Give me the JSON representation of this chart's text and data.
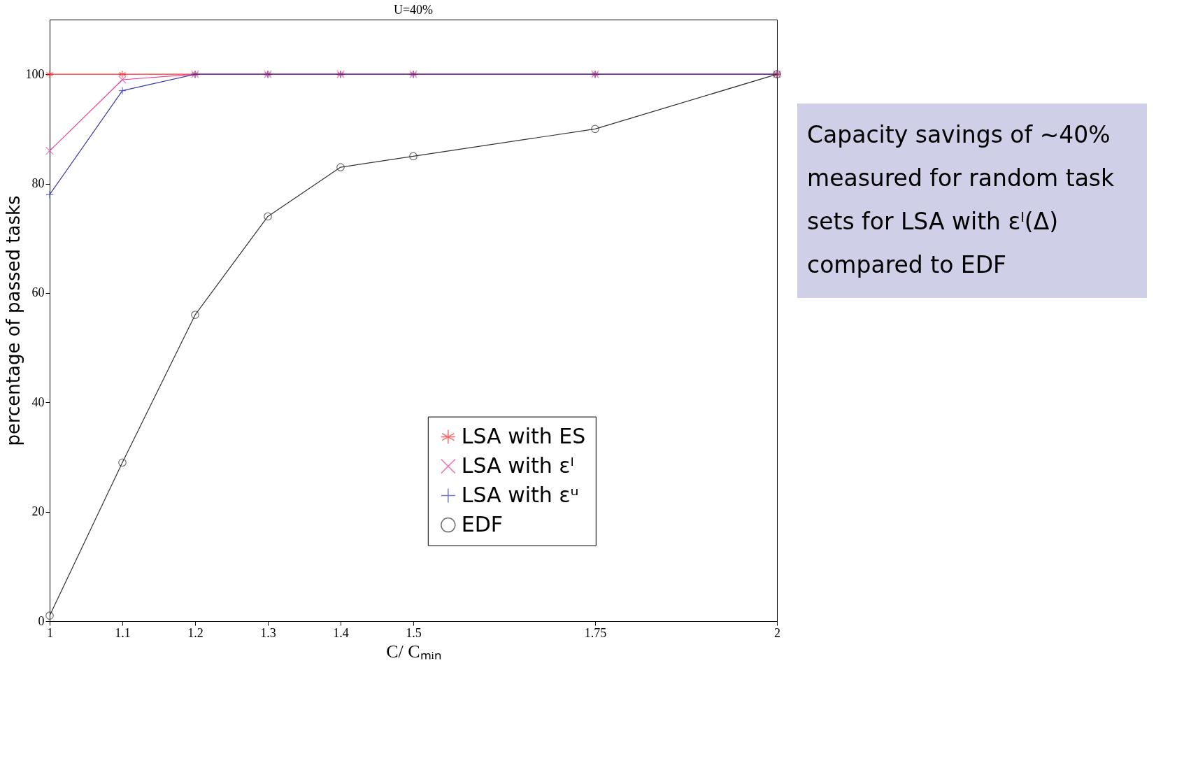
{
  "chart_data": {
    "type": "line",
    "title": "U=40%",
    "xlabel": "C/ Cₘᵢₙ",
    "ylabel": "percentage of passed tasks",
    "x": [
      1,
      1.1,
      1.2,
      1.3,
      1.4,
      1.5,
      1.75,
      2
    ],
    "series": [
      {
        "name": "LSA with ES",
        "color": "#ff2a2a",
        "marker": "cross",
        "values": [
          100,
          100,
          100,
          100,
          100,
          100,
          100,
          100
        ]
      },
      {
        "name": "LSA with εˡ",
        "color": "#e8449a",
        "marker": "x",
        "values": [
          86,
          99,
          100,
          100,
          100,
          100,
          100,
          100
        ]
      },
      {
        "name": "LSA with εᵘ",
        "color": "#3a3aa8",
        "marker": "plus",
        "values": [
          78,
          97,
          100,
          100,
          100,
          100,
          100,
          100
        ]
      },
      {
        "name": "EDF",
        "color": "#333333",
        "marker": "circle",
        "values": [
          1,
          29,
          56,
          74,
          83,
          85,
          90,
          100
        ]
      }
    ],
    "xlim": [
      1,
      2
    ],
    "xticks": [
      1,
      1.1,
      1.2,
      1.3,
      1.4,
      1.5,
      1.75,
      2
    ],
    "ylim": [
      0,
      110
    ],
    "yticks": [
      0,
      20,
      40,
      60,
      80,
      100
    ],
    "grid": false,
    "legend": "bottom right",
    "line_style": "solid",
    "annotations": [
      "Capacity savings of ~40% measured for random task sets for LSA with εˡ(Δ) compared to EDF"
    ]
  }
}
